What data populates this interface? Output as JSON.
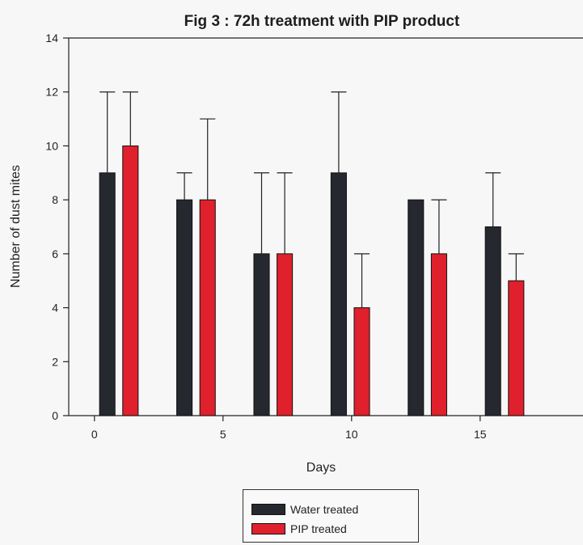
{
  "chart_data": {
    "type": "bar",
    "title": "Fig 3 : 72h treatment with PIP product",
    "xlabel": "Days",
    "ylabel": "Number of dust mites",
    "xlim": [
      -1,
      19
    ],
    "ylim": [
      0,
      14
    ],
    "xticks": [
      0,
      5,
      10,
      15
    ],
    "yticks": [
      0,
      2,
      4,
      6,
      8,
      10,
      12,
      14
    ],
    "grid": false,
    "legend_position": "bottom-center",
    "bar_width": 0.6,
    "series": [
      {
        "name": "Water treated",
        "color": "#26282f",
        "x": [
          0.5,
          3.5,
          6.5,
          9.5,
          12.5,
          15.5
        ],
        "values": [
          9,
          8,
          6,
          9,
          8,
          7
        ],
        "error_upper": [
          12,
          9,
          9,
          12,
          8,
          9
        ]
      },
      {
        "name": "PIP treated",
        "color": "#e0202c",
        "x": [
          1.4,
          4.4,
          7.4,
          10.4,
          13.4,
          16.4
        ],
        "values": [
          10,
          8,
          6,
          4,
          6,
          5
        ],
        "error_upper": [
          12,
          11,
          9,
          6,
          8,
          6
        ]
      }
    ]
  }
}
